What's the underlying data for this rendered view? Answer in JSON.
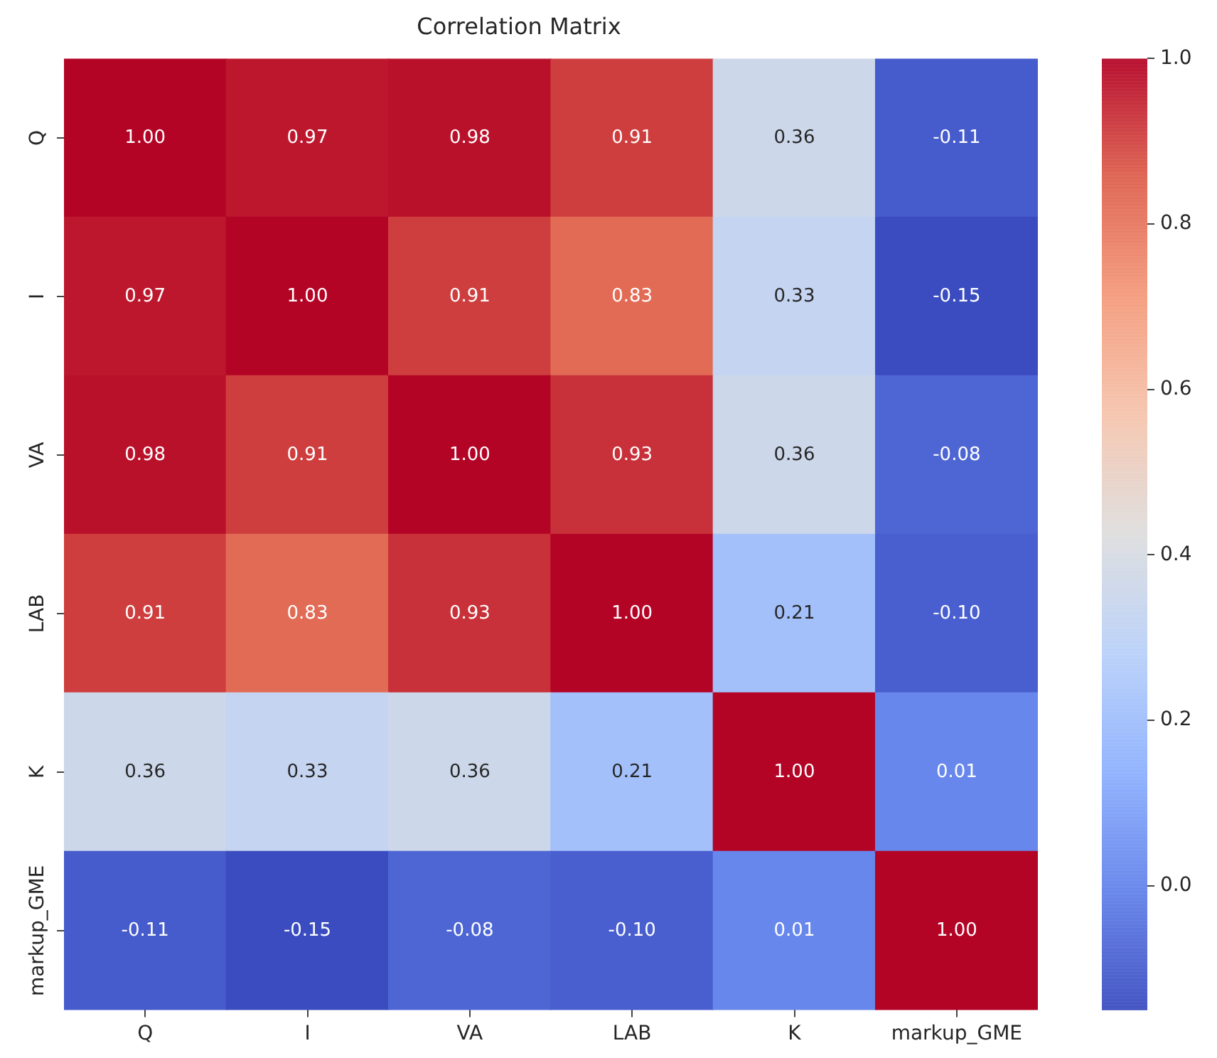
{
  "chart_data": {
    "type": "heatmap",
    "title": "Correlation Matrix",
    "categories": [
      "Q",
      "I",
      "VA",
      "LAB",
      "K",
      "markup_GME"
    ],
    "y_categories": [
      "Q",
      "I",
      "VA",
      "LAB",
      "K",
      "markup_GME"
    ],
    "cells": [
      [
        1.0,
        0.97,
        0.98,
        0.91,
        0.36,
        -0.11
      ],
      [
        0.97,
        1.0,
        0.91,
        0.83,
        0.33,
        -0.15
      ],
      [
        0.98,
        0.91,
        1.0,
        0.93,
        0.36,
        -0.08
      ],
      [
        0.91,
        0.83,
        0.93,
        1.0,
        0.21,
        -0.1
      ],
      [
        0.36,
        0.33,
        0.36,
        0.21,
        1.0,
        0.01
      ],
      [
        -0.11,
        -0.15,
        -0.08,
        -0.1,
        0.01,
        1.0
      ]
    ],
    "cell_labels": [
      [
        "1.00",
        "0.97",
        "0.98",
        "0.91",
        "0.36",
        "-0.11"
      ],
      [
        "0.97",
        "1.00",
        "0.91",
        "0.83",
        "0.33",
        "-0.15"
      ],
      [
        "0.98",
        "0.91",
        "1.00",
        "0.93",
        "0.36",
        "-0.08"
      ],
      [
        "0.91",
        "0.83",
        "0.93",
        "1.00",
        "0.21",
        "-0.10"
      ],
      [
        "0.36",
        "0.33",
        "0.36",
        "0.21",
        "1.00",
        "0.01"
      ],
      [
        "-0.11",
        "-0.15",
        "-0.08",
        "-0.10",
        "0.01",
        "1.00"
      ]
    ],
    "clim": [
      -0.15,
      1.0
    ],
    "cticks": [
      {
        "value": 0,
        "label": "0.0"
      },
      {
        "value": 0.2,
        "label": "0.2"
      },
      {
        "value": 0.4,
        "label": "0.4"
      },
      {
        "value": 0.6,
        "label": "0.6"
      },
      {
        "value": 0.8,
        "label": "0.8"
      },
      {
        "value": 1,
        "label": "1.0"
      }
    ]
  }
}
